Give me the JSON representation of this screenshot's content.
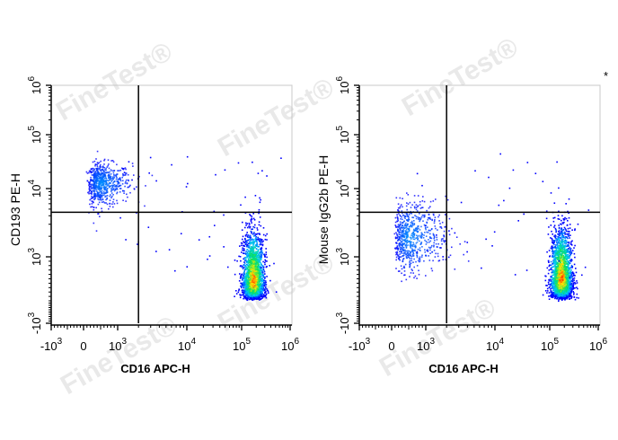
{
  "chart_data": [
    {
      "type": "scatter",
      "subtype": "flow-cytometry pseudocolor density plot",
      "xlabel": "CD16 APC-H",
      "ylabel": "CD193 PE-H",
      "x_scale": "biexponential",
      "y_scale": "biexponential",
      "x_ticks": [
        "-10^3",
        "0",
        "10^3",
        "10^4",
        "10^5",
        "10^6"
      ],
      "y_ticks": [
        "-10^3",
        "10^3",
        "10^4",
        "10^5",
        "10^6"
      ],
      "xlim": [
        -1000,
        1000000
      ],
      "ylim": [
        -1000,
        1000000
      ],
      "gates": {
        "x": 2000,
        "y": 4500
      },
      "populations": [
        {
          "x_center": 500,
          "y_center": 13000,
          "x_spread_decades": 0.25,
          "y_spread_decades": 0.18,
          "events": 700,
          "density": "low"
        },
        {
          "x_center": 170000,
          "y_center": 450,
          "x_spread_decades": 0.11,
          "y_spread_decades": 0.35,
          "events": 2200,
          "density": "high"
        }
      ],
      "grid": false,
      "legend": "none"
    },
    {
      "type": "scatter",
      "subtype": "flow-cytometry pseudocolor density plot",
      "xlabel": "CD16 APC-H",
      "ylabel": "Mouse IgG2b PE-H",
      "x_scale": "biexponential",
      "y_scale": "biexponential",
      "x_ticks": [
        "-10^3",
        "0",
        "10^3",
        "10^4",
        "10^5",
        "10^6"
      ],
      "y_ticks": [
        "-10^3",
        "10^3",
        "10^4",
        "10^5",
        "10^6"
      ],
      "xlim": [
        -1000,
        1000000
      ],
      "ylim": [
        -1000,
        1000000
      ],
      "gates": {
        "x": 2000,
        "y": 4500
      },
      "populations": [
        {
          "x_center": 500,
          "y_center": 2000,
          "x_spread_decades": 0.3,
          "y_spread_decades": 0.25,
          "events": 700,
          "density": "low"
        },
        {
          "x_center": 170000,
          "y_center": 500,
          "x_spread_decades": 0.11,
          "y_spread_decades": 0.35,
          "events": 2200,
          "density": "high"
        }
      ],
      "grid": false,
      "legend": "none",
      "annotation": "*"
    }
  ],
  "watermark": "FineTest®",
  "colors": {
    "low": "#0000ff",
    "mid1": "#00c8ff",
    "mid2": "#00e060",
    "mid3": "#ffee00",
    "high": "#ff2000"
  }
}
